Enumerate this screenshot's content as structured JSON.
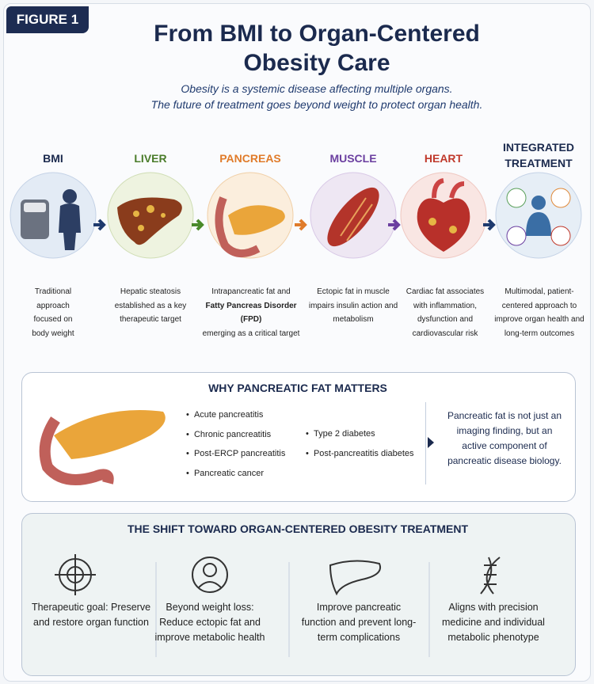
{
  "badge": "FIGURE 1",
  "header": {
    "title": "From BMI to Organ-Centered Obesity Care",
    "subtitle_lines": [
      "Obesity is a systemic disease affecting multiple organs.",
      "The future of treatment goes beyond weight to protect organ health."
    ]
  },
  "stages": [
    {
      "label": "BMI",
      "description": "Traditional approach focused on body weight"
    },
    {
      "label": "LIVER",
      "description": "Hepatic steatosis established as a key therapeutic target"
    },
    {
      "label": "PANCREAS",
      "description": "Intrapancreatic fat and",
      "emphasis": "Fatty Pancreas Disorder (FPD)",
      "description_end": "emerging as a critical target"
    },
    {
      "label": "MUSCLE",
      "description": "Ectopic fat in muscle impairs insulin action and metabolism"
    },
    {
      "label": "HEART",
      "description": "Cardiac fat associates with inflammation, dysfunction and cardiovascular risk"
    },
    {
      "label": "INTEGRATED TREATMENT",
      "description": "Multimodal, patient-centered approach to improve organ health and long-term outcomes"
    }
  ],
  "why": {
    "title": "WHY PANCREATIC FAT MATTERS",
    "list_1": [
      "Acute pancreatitis",
      "Chronic pancreatitis",
      "Post-ERCP pancreatitis",
      "Pancreatic cancer"
    ],
    "list_2": [
      "Type 2 diabetes",
      "Post-pancreatitis diabetes"
    ],
    "note": "Pancreatic fat is not just an imaging finding, but an active component of pancreatic disease biology."
  },
  "shift": {
    "title": "THE SHIFT TOWARD ORGAN-CENTERED OBESITY TREATMENT",
    "items": [
      "Therapeutic goal: Preserve and restore organ function",
      "Beyond weight loss: Reduce ectopic fat and improve metabolic health",
      "Improve pancreatic function and prevent long-term complications",
      "Aligns with precision medicine and individual metabolic phenotype"
    ]
  }
}
